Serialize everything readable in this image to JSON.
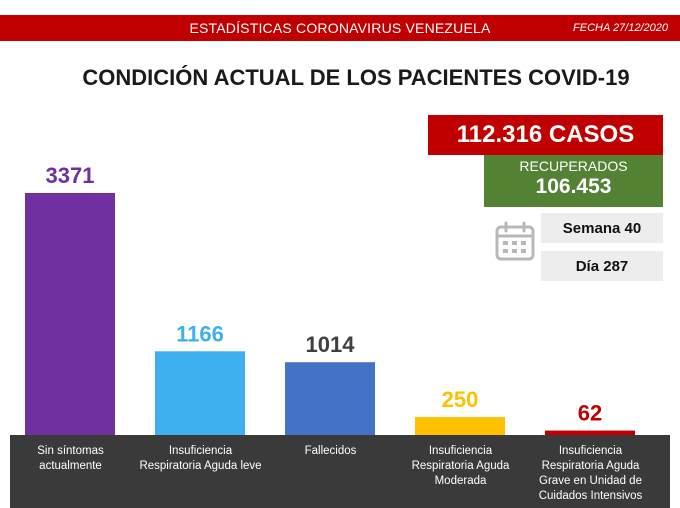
{
  "header": {
    "title": "ESTADÍSTICAS CORONAVIRUS VENEZUELA",
    "date": "FECHA 27/12/2020",
    "bar_color": "#c00000"
  },
  "main_title": "CONDICIÓN ACTUAL DE LOS PACIENTES COVID-19",
  "summary": {
    "total_cases": "112.316 CASOS",
    "recovered_label": "RECUPERADOS",
    "recovered_value": "106.453",
    "week": "Semana 40",
    "day": "Día 287",
    "calendar_icon": "calendar-icon"
  },
  "chart_data": {
    "type": "bar",
    "categories": [
      "Sin síntomas actualmente",
      "Insuficiencia Respiratoria Aguda leve",
      "Fallecidos",
      "Insuficiencia Respiratoria Aguda Moderada",
      "Insuficiencia Respiratoria Aguda Grave en Unidad de Cuidados Intensivos"
    ],
    "category_label_lines": [
      [
        "Sin síntomas",
        "actualmente"
      ],
      [
        "Insuficiencia",
        "Respiratoria Aguda leve"
      ],
      [
        "Fallecidos"
      ],
      [
        "Insuficiencia",
        "Respiratoria Aguda",
        "Moderada"
      ],
      [
        "Insuficiencia",
        "Respiratoria Aguda",
        "Grave en Unidad de",
        "Cuidados Intensivos"
      ]
    ],
    "values": [
      3371,
      1166,
      1014,
      250,
      62
    ],
    "data_labels": [
      "3371",
      "1166",
      "1014",
      "250",
      "62"
    ],
    "colors": [
      "#7030a0",
      "#3eb0f0",
      "#4472c4",
      "#ffc000",
      "#c00000"
    ],
    "label_colors": [
      "#7030a0",
      "#3eb0f0",
      "#404040",
      "#ffc000",
      "#c00000"
    ],
    "ylim": [
      0,
      3371
    ],
    "grid": false,
    "legend": "none",
    "xlabel": "",
    "ylabel": ""
  }
}
